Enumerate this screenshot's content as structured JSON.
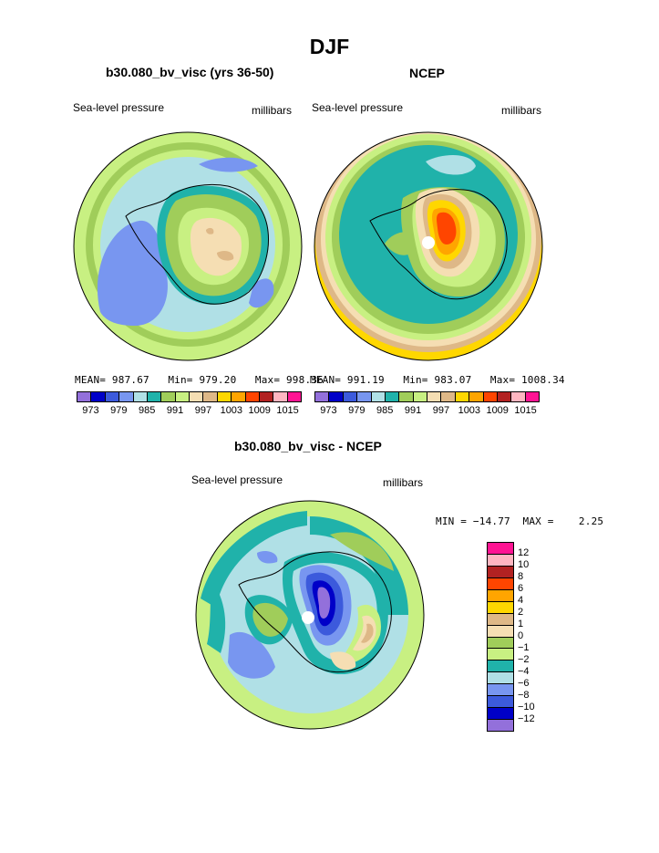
{
  "title": "DJF",
  "panels": [
    {
      "title": "b30.080_bv_visc (yrs 36-50)",
      "left_label": "Sea-level pressure",
      "right_label": "millibars",
      "mean": "MEAN= 987.67",
      "min": "Min= 979.20",
      "max": "Max= 998.36"
    },
    {
      "title": "NCEP",
      "left_label": "Sea-level pressure",
      "right_label": "millibars",
      "mean": "MEAN= 991.19",
      "min": "Min= 983.07",
      "max": "Max= 1008.34"
    }
  ],
  "colorbar_top": {
    "colors": [
      "#9370db",
      "#0000c8",
      "#3c5adc",
      "#7896f0",
      "#b0e0e6",
      "#20b2aa",
      "#a0cd5a",
      "#c8f082",
      "#f5deb3",
      "#deb887",
      "#ffd700",
      "#ffa500",
      "#ff4500",
      "#b22222",
      "#ffb6c1",
      "#ff1493"
    ],
    "labels": [
      "973",
      "979",
      "985",
      "991",
      "997",
      "1003",
      "1009",
      "1015"
    ]
  },
  "diff": {
    "title": "b30.080_bv_visc - NCEP",
    "left_label": "Sea-level pressure",
    "right_label": "millibars",
    "minmax": "MIN = −14.77  MAX =    2.25"
  },
  "colorbar_diff": {
    "colors": [
      "#ff1493",
      "#ffb6c1",
      "#b22222",
      "#ff4500",
      "#ffa500",
      "#ffd700",
      "#deb887",
      "#f5deb3",
      "#a0cd5a",
      "#c8f082",
      "#20b2aa",
      "#b0e0e6",
      "#7896f0",
      "#3c5adc",
      "#0000c8",
      "#9370db"
    ],
    "labels": [
      "12",
      "10",
      "8",
      "6",
      "4",
      "2",
      "1",
      "0",
      "−1",
      "−2",
      "−4",
      "−6",
      "−8",
      "−10",
      "−12"
    ]
  }
}
